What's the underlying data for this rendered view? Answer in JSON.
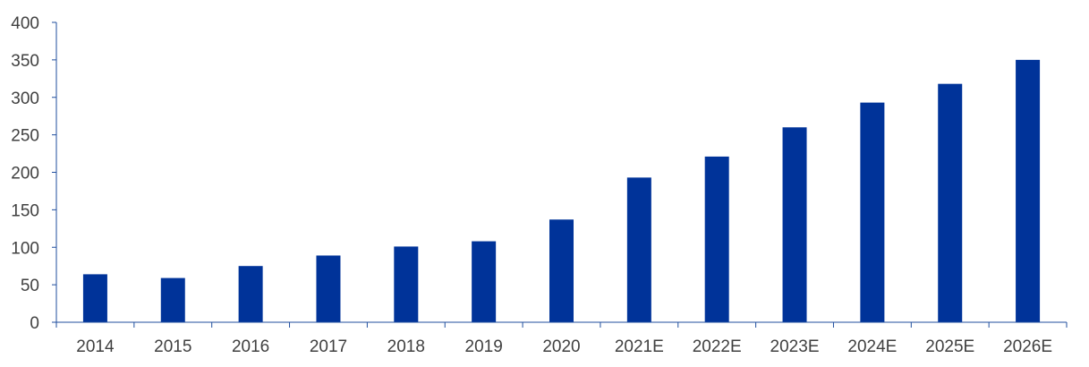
{
  "chart_data": {
    "type": "bar",
    "categories": [
      "2014",
      "2015",
      "2016",
      "2017",
      "2018",
      "2019",
      "2020",
      "2021E",
      "2022E",
      "2023E",
      "2024E",
      "2025E",
      "2026E"
    ],
    "values": [
      64,
      59,
      75,
      89,
      101,
      108,
      137,
      193,
      221,
      260,
      293,
      318,
      350
    ],
    "title": "",
    "xlabel": "",
    "ylabel": "",
    "ylim": [
      0,
      400
    ],
    "yticks": [
      0,
      50,
      100,
      150,
      200,
      250,
      300,
      350,
      400
    ],
    "bar_color": "#003399",
    "axis_color": "#1f4e9e",
    "grid": false,
    "legend": "none"
  }
}
